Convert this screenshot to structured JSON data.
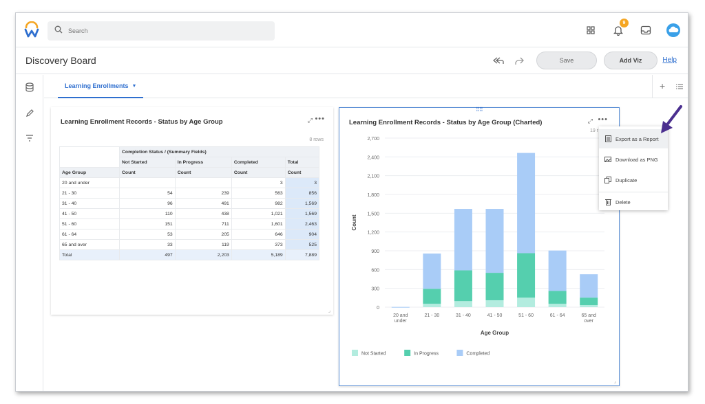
{
  "app": {
    "search_placeholder": "Search",
    "notification_count": "9"
  },
  "header": {
    "title": "Discovery Board",
    "save_label": "Save",
    "add_viz_label": "Add Viz",
    "help_label": "Help"
  },
  "tabs": [
    {
      "label": "Learning Enrollments"
    }
  ],
  "table_card": {
    "title": "Learning Enrollment Records - Status by Age Group",
    "rows_note": "8 rows",
    "group_header": "Completion Status / (Summary Fields)",
    "col_headers": [
      "Not Started",
      "In Progress",
      "Completed",
      "Total"
    ],
    "row_header_label": "Age Group",
    "count_label": "Count",
    "rows": [
      {
        "age": "20 and under",
        "not_started": "",
        "in_progress": "",
        "completed": "3",
        "total": "3"
      },
      {
        "age": "21 - 30",
        "not_started": "54",
        "in_progress": "239",
        "completed": "563",
        "total": "856"
      },
      {
        "age": "31 - 40",
        "not_started": "96",
        "in_progress": "491",
        "completed": "982",
        "total": "1,569"
      },
      {
        "age": "41 - 50",
        "not_started": "110",
        "in_progress": "438",
        "completed": "1,021",
        "total": "1,569"
      },
      {
        "age": "51 - 60",
        "not_started": "151",
        "in_progress": "711",
        "completed": "1,601",
        "total": "2,463"
      },
      {
        "age": "61 - 64",
        "not_started": "53",
        "in_progress": "205",
        "completed": "646",
        "total": "904"
      },
      {
        "age": "65 and over",
        "not_started": "33",
        "in_progress": "119",
        "completed": "373",
        "total": "525"
      },
      {
        "age": "Total",
        "not_started": "497",
        "in_progress": "2,203",
        "completed": "5,189",
        "total": "7,889"
      }
    ]
  },
  "chart_card": {
    "title": "Learning Enrollment Records - Status by Age Group (Charted)",
    "rows_note": "19 r"
  },
  "menu": {
    "items": [
      {
        "label": "Export as a Report",
        "icon": "report-icon"
      },
      {
        "label": "Download as PNG",
        "icon": "image-icon"
      },
      {
        "label": "Duplicate",
        "icon": "duplicate-icon"
      },
      {
        "label": "Delete",
        "icon": "trash-icon"
      }
    ]
  },
  "colors": {
    "accent": "#2f6fcf",
    "not_started": "#b3ecdf",
    "in_progress": "#55cfae",
    "completed": "#a9ccf7",
    "arrow": "#4b2f8f"
  },
  "chart_data": {
    "type": "bar",
    "stacked": true,
    "categories": [
      "20 and under",
      "21 - 30",
      "31 - 40",
      "41 - 50",
      "51 - 60",
      "61 - 64",
      "65 and over"
    ],
    "series": [
      {
        "name": "Not Started",
        "values": [
          0,
          54,
          96,
          110,
          151,
          53,
          33
        ]
      },
      {
        "name": "In Progress",
        "values": [
          0,
          239,
          491,
          438,
          711,
          205,
          119
        ]
      },
      {
        "name": "Completed",
        "values": [
          3,
          563,
          982,
          1021,
          1601,
          646,
          373
        ]
      }
    ],
    "xlabel": "Age Group",
    "ylabel": "Count",
    "yticks": [
      "0",
      "300",
      "600",
      "900",
      "1,200",
      "1,500",
      "1,800",
      "2,100",
      "2,400",
      "2,700"
    ],
    "ylim": [
      0,
      2700
    ],
    "legend": "bottom-left",
    "grid": true
  }
}
